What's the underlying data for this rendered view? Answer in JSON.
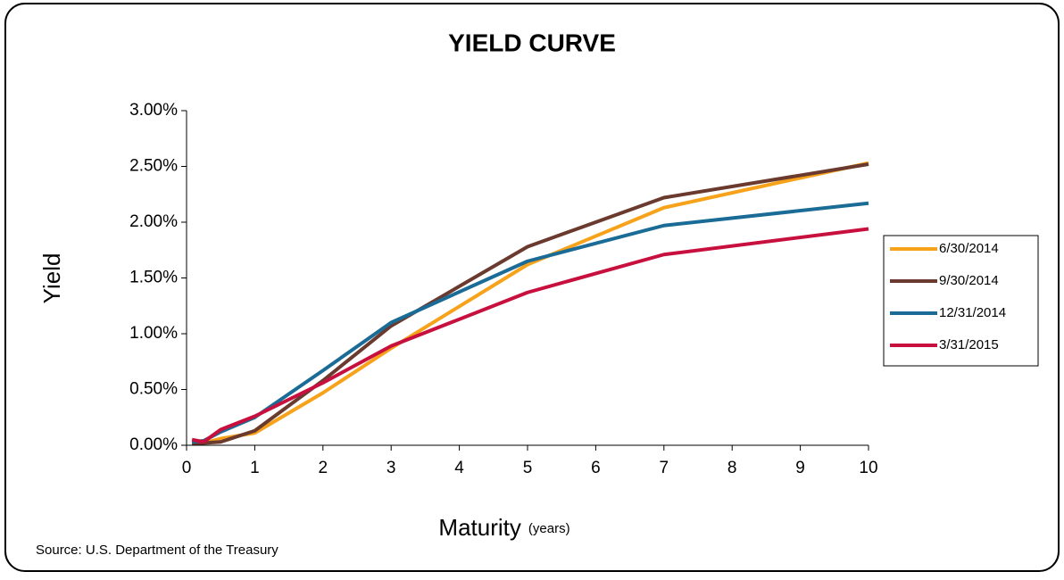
{
  "chart_data": {
    "type": "line",
    "title": "YIELD CURVE",
    "y_label": "Yield",
    "x_label": "Maturity",
    "x_label_unit": "(years)",
    "source": "Source: U.S. Department of the Treasury",
    "x": [
      0.08,
      0.25,
      0.5,
      1,
      2,
      3,
      5,
      7,
      10
    ],
    "xlim": [
      0,
      10
    ],
    "xticks": [
      0,
      1,
      2,
      3,
      4,
      5,
      6,
      7,
      8,
      9,
      10
    ],
    "ylim": [
      0,
      3
    ],
    "yticks": [
      {
        "value": 0,
        "label": "0.00%"
      },
      {
        "value": 0.5,
        "label": "0.50%"
      },
      {
        "value": 1,
        "label": "1.00%"
      },
      {
        "value": 1.5,
        "label": "1.50%"
      },
      {
        "value": 2,
        "label": "2.00%"
      },
      {
        "value": 2.5,
        "label": "2.50%"
      },
      {
        "value": 3,
        "label": "3.00%"
      }
    ],
    "grid": false,
    "legend": "right",
    "series": [
      {
        "name": "6/30/2014",
        "color": "#f7a21b",
        "values": [
          0.02,
          0.02,
          0.06,
          0.11,
          0.47,
          0.87,
          1.62,
          2.13,
          2.53
        ]
      },
      {
        "name": "9/30/2014",
        "color": "#6b3a2e",
        "values": [
          0.02,
          0.02,
          0.03,
          0.13,
          0.58,
          1.07,
          1.78,
          2.22,
          2.52
        ]
      },
      {
        "name": "12/31/2014",
        "color": "#1a6b96",
        "values": [
          0.03,
          0.04,
          0.12,
          0.25,
          0.67,
          1.1,
          1.65,
          1.97,
          2.17
        ]
      },
      {
        "name": "3/31/2015",
        "color": "#c8103f",
        "values": [
          0.05,
          0.03,
          0.14,
          0.26,
          0.56,
          0.89,
          1.37,
          1.71,
          1.94
        ]
      }
    ]
  }
}
